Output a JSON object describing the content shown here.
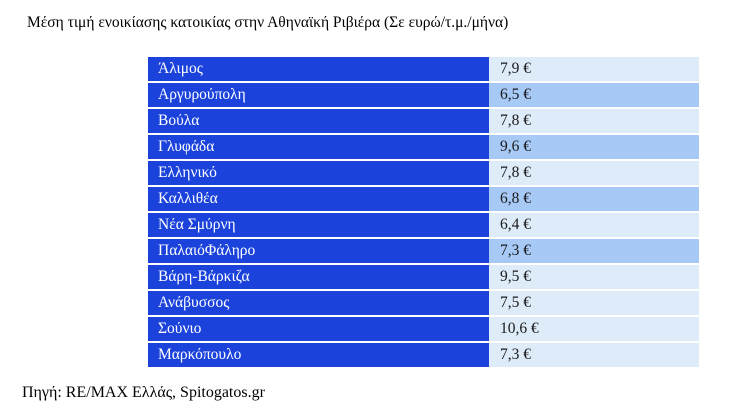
{
  "title": "Μέση τιμή ενοικίασης κατοικίας στην Αθηναϊκή Ριβιέρα (Σε ευρώ/τ.μ./μήνα)",
  "source": "Πηγή: RE/MAX Ελλάς, Spitogatos.gr",
  "colors": {
    "bar_blue": "#1b43dc",
    "row_light": "#deebf8",
    "row_medium": "#a7c9f6",
    "label_text": "#ffffff",
    "value_text": "#1a1a1a"
  },
  "chart_data": {
    "type": "table",
    "title": "Μέση τιμή ενοικίασης κατοικίας στην Αθηναϊκή Ριβιέρα (Σε ευρώ/τ.μ./μήνα)",
    "unit": "ευρώ/τ.μ./μήνα",
    "categories": [
      "Άλιμος",
      "Αργυρούπολη",
      "Βούλα",
      "Γλυφάδα",
      "Ελληνικό",
      "Καλλιθέα",
      "Νέα Σμύρνη",
      "ΠαλαιόΦάληρο",
      "Βάρη-Βάρκιζα",
      "Ανάβυσσος",
      "Σούνιο",
      "Μαρκόπουλο"
    ],
    "values": [
      7.9,
      6.5,
      7.8,
      9.6,
      7.8,
      6.8,
      6.4,
      7.3,
      9.5,
      7.5,
      10.6,
      7.3
    ],
    "value_labels": [
      "7,9 €",
      "6,5 €",
      "7,8 €",
      "9,6 €",
      "7,8 €",
      "6,8 €",
      "6,4 €",
      "7,3 €",
      "9,5 €",
      "7,5 €",
      "10,6 €",
      "7,3 €"
    ],
    "source": "Πηγή: RE/MAX Ελλάς, Spitogatos.gr"
  },
  "rows": [
    {
      "label": "Άλιμος",
      "value_label": "7,9 €",
      "shade": "light"
    },
    {
      "label": "Αργυρούπολη",
      "value_label": "6,5 €",
      "shade": "medium"
    },
    {
      "label": "Βούλα",
      "value_label": "7,8 €",
      "shade": "light"
    },
    {
      "label": "Γλυφάδα",
      "value_label": "9,6 €",
      "shade": "medium"
    },
    {
      "label": "Ελληνικό",
      "value_label": "7,8 €",
      "shade": "light"
    },
    {
      "label": "Καλλιθέα",
      "value_label": "6,8 €",
      "shade": "medium"
    },
    {
      "label": "Νέα Σμύρνη",
      "value_label": "6,4 €",
      "shade": "light"
    },
    {
      "label": "ΠαλαιόΦάληρο",
      "value_label": "7,3 €",
      "shade": "medium"
    },
    {
      "label": "Βάρη-Βάρκιζα",
      "value_label": "9,5 €",
      "shade": "light"
    },
    {
      "label": "Ανάβυσσος",
      "value_label": "7,5 €",
      "shade": "light"
    },
    {
      "label": "Σούνιο",
      "value_label": "10,6 €",
      "shade": "light"
    },
    {
      "label": "Μαρκόπουλο",
      "value_label": "7,3 €",
      "shade": "light"
    }
  ]
}
